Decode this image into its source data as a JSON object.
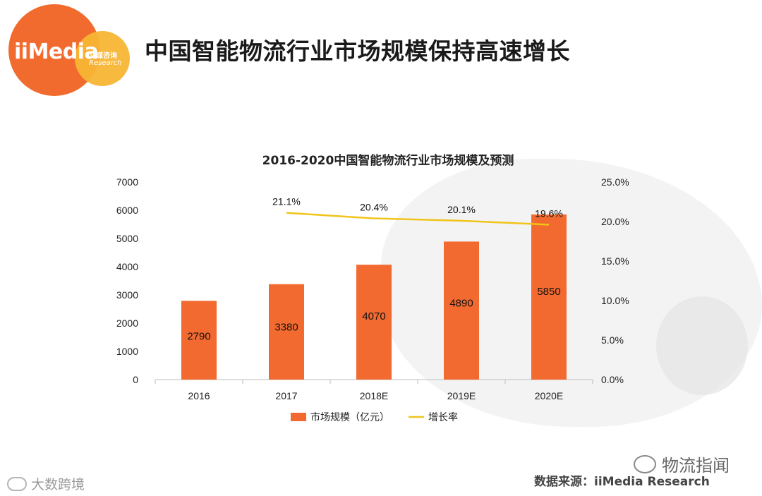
{
  "header": {
    "title": "中国智能物流行业市场规模保持高速增长",
    "logo_text": "iiMedia",
    "logo_cn": "艾媒咨询",
    "logo_en": "Research"
  },
  "chart_data": {
    "type": "bar",
    "title": "2016-2020中国智能物流行业市场规模及预测",
    "categories": [
      "2016",
      "2017",
      "2018E",
      "2019E",
      "2020E"
    ],
    "series": [
      {
        "name": "市场规模（亿元）",
        "type": "bar",
        "axis": "left",
        "values": [
          2790,
          3380,
          4070,
          4890,
          5850
        ]
      },
      {
        "name": "增长率",
        "type": "line",
        "axis": "right",
        "values": [
          null,
          21.1,
          20.4,
          20.1,
          19.6
        ]
      }
    ],
    "bar_value_labels": [
      "2790",
      "3380",
      "4070",
      "4890",
      "5850"
    ],
    "rate_value_labels": [
      "21.1%",
      "20.4%",
      "20.1%",
      "19.6%"
    ],
    "ylim": [
      0,
      7000
    ],
    "yticks": [
      "0",
      "1000",
      "2000",
      "3000",
      "4000",
      "5000",
      "6000",
      "7000"
    ],
    "y2lim": [
      0,
      25
    ],
    "y2ticks": [
      "0.0%",
      "5.0%",
      "10.0%",
      "15.0%",
      "20.0%",
      "25.0%"
    ],
    "legend_position": "bottom",
    "colors": {
      "bar": "#f26a30",
      "line": "#f0c419"
    }
  },
  "footer": {
    "source": "数据来源：iiMedia Research",
    "left_brand": "大数跨境",
    "right_brand": "物流指闻"
  }
}
